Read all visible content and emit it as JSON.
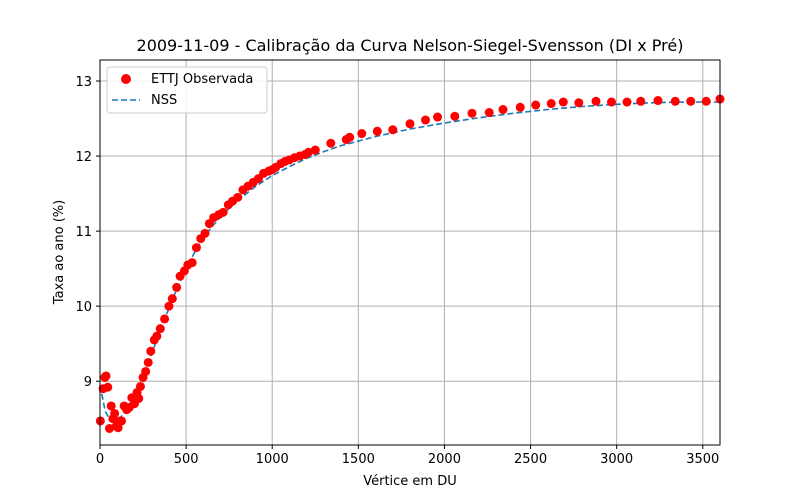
{
  "chart_data": {
    "type": "scatter",
    "title": "2009-11-09 - Calibração da Curva Nelson-Siegel-Svensson (DI x Pré)",
    "xlabel": "Vértice em DU",
    "ylabel": "Taxa ao ano (%)",
    "xlim": [
      0,
      3600
    ],
    "ylim": [
      8.15,
      13.28
    ],
    "xticks": [
      0,
      500,
      1000,
      1500,
      2000,
      2500,
      3000,
      3500
    ],
    "yticks": [
      9,
      10,
      11,
      12,
      13
    ],
    "xtick_labels": [
      "0",
      "500",
      "1000",
      "1500",
      "2000",
      "2500",
      "3000",
      "3500"
    ],
    "ytick_labels": [
      "9",
      "10",
      "11",
      "12",
      "13"
    ],
    "grid": true,
    "legend_position": "top-left",
    "colors": {
      "observed": "#ff0000",
      "nss": "#1f77b4"
    },
    "series": [
      {
        "name": "ETTJ Observada",
        "kind": "scatter",
        "x": [
          2,
          18,
          28,
          35,
          45,
          55,
          65,
          75,
          85,
          95,
          105,
          115,
          125,
          140,
          155,
          170,
          185,
          200,
          215,
          225,
          235,
          250,
          265,
          280,
          295,
          315,
          330,
          350,
          375,
          400,
          420,
          445,
          465,
          490,
          510,
          535,
          560,
          585,
          610,
          635,
          660,
          690,
          715,
          745,
          770,
          800,
          830,
          860,
          890,
          920,
          950,
          980,
          1000,
          1020,
          1050,
          1075,
          1100,
          1130,
          1160,
          1190,
          1210,
          1250,
          1340,
          1430,
          1450,
          1520,
          1610,
          1700,
          1800,
          1890,
          1960,
          2060,
          2160,
          2260,
          2340,
          2440,
          2530,
          2620,
          2690,
          2780,
          2880,
          2970,
          3060,
          3140,
          3240,
          3340,
          3430,
          3520,
          3600
        ],
        "y": [
          8.47,
          8.9,
          9.05,
          9.07,
          8.92,
          8.37,
          8.67,
          8.5,
          8.57,
          8.4,
          8.38,
          8.47,
          8.47,
          8.67,
          8.62,
          8.65,
          8.78,
          8.7,
          8.85,
          8.77,
          8.93,
          9.05,
          9.13,
          9.25,
          9.4,
          9.55,
          9.6,
          9.7,
          9.83,
          10.0,
          10.1,
          10.25,
          10.4,
          10.47,
          10.55,
          10.58,
          10.78,
          10.9,
          10.97,
          11.1,
          11.18,
          11.22,
          11.25,
          11.35,
          11.4,
          11.45,
          11.55,
          11.6,
          11.65,
          11.7,
          11.77,
          11.8,
          11.82,
          11.85,
          11.9,
          11.93,
          11.95,
          11.98,
          12.0,
          12.02,
          12.05,
          12.08,
          12.17,
          12.22,
          12.25,
          12.3,
          12.33,
          12.35,
          12.43,
          12.48,
          12.52,
          12.53,
          12.57,
          12.58,
          12.62,
          12.65,
          12.68,
          12.7,
          12.72,
          12.71,
          12.73,
          12.72,
          12.72,
          12.73,
          12.74,
          12.73,
          12.73,
          12.73,
          12.76
        ]
      },
      {
        "name": "NSS",
        "kind": "line",
        "x": [
          0,
          30,
          60,
          90,
          120,
          150,
          180,
          210,
          240,
          270,
          300,
          350,
          400,
          450,
          500,
          550,
          600,
          650,
          700,
          800,
          900,
          1000,
          1100,
          1200,
          1300,
          1400,
          1500,
          1600,
          1800,
          2000,
          2200,
          2400,
          2600,
          2800,
          3000,
          3200,
          3400,
          3600
        ],
        "y": [
          8.95,
          8.6,
          8.48,
          8.47,
          8.52,
          8.6,
          8.72,
          8.86,
          9.02,
          9.19,
          9.37,
          9.67,
          9.97,
          10.25,
          10.5,
          10.72,
          10.9,
          11.06,
          11.19,
          11.41,
          11.59,
          11.74,
          11.86,
          11.97,
          12.06,
          12.14,
          12.2,
          12.26,
          12.36,
          12.44,
          12.51,
          12.57,
          12.62,
          12.66,
          12.69,
          12.71,
          12.72,
          12.72
        ]
      }
    ]
  }
}
